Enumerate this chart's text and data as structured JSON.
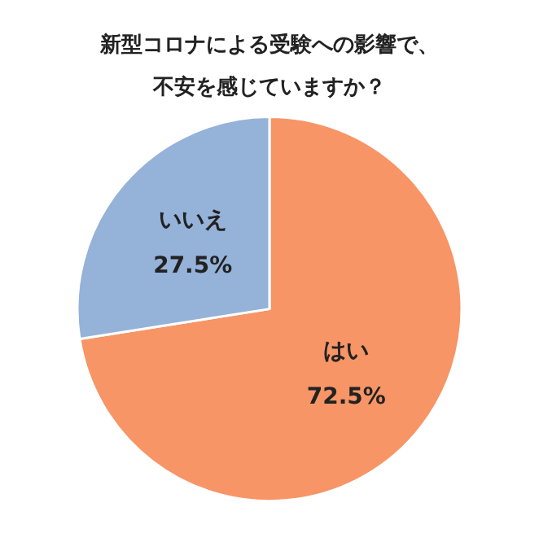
{
  "chart_data": {
    "type": "pie",
    "title": "新型コロナによる受験への影響で、不安を感じていますか？",
    "categories": [
      "はい",
      "いいえ"
    ],
    "values": [
      72.5,
      27.5
    ],
    "colors": [
      "#f79566",
      "#95b2d9"
    ],
    "value_labels": [
      "72.5%",
      "27.5%"
    ],
    "legend": false
  }
}
